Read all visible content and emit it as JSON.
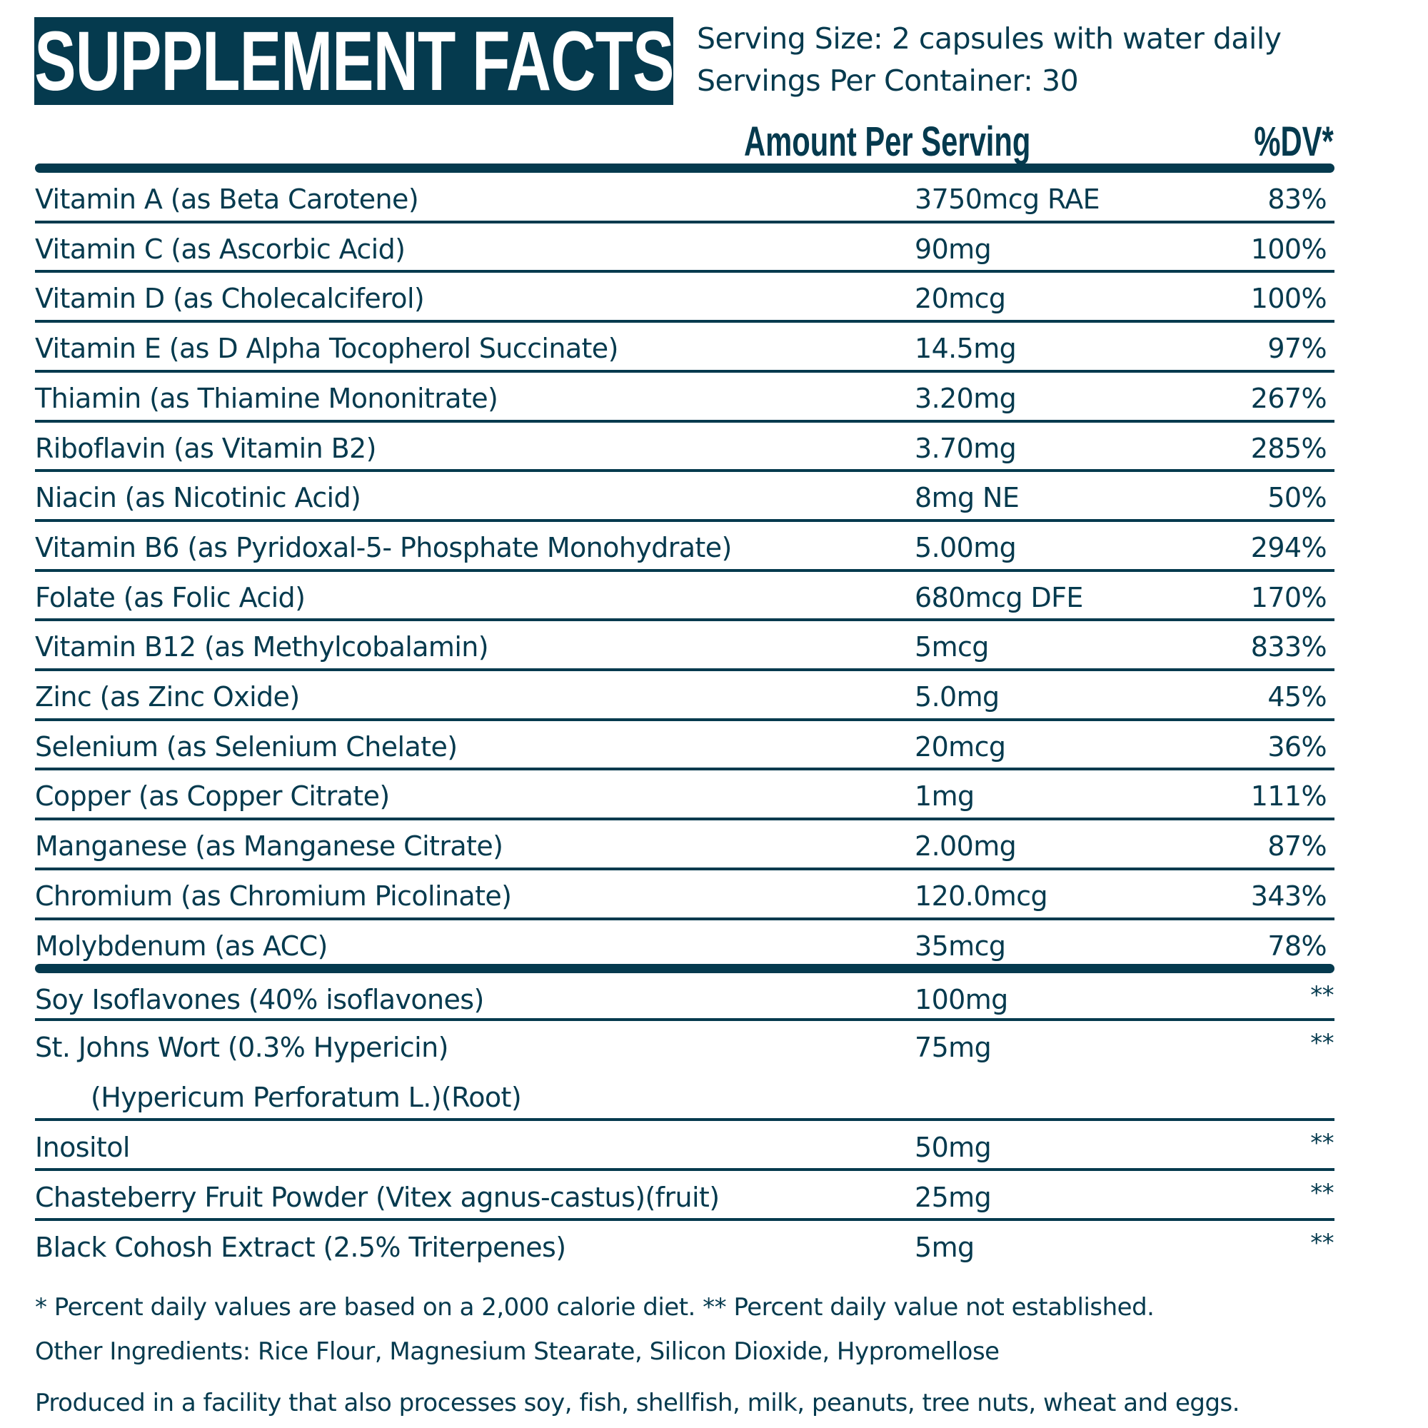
{
  "header": {
    "title": "SUPPLEMENT FACTS",
    "serving_size": "Serving Size: 2 capsules with water daily",
    "servings_per_container": "Servings Per Container: 30"
  },
  "columns": {
    "amount": "Amount Per Serving",
    "dv": "%DV*"
  },
  "nutrients": [
    {
      "name": "Vitamin A (as Beta Carotene)",
      "amount": "3750mcg RAE",
      "dv": "83%"
    },
    {
      "name": "Vitamin C (as Ascorbic Acid)",
      "amount": "90mg",
      "dv": "100%"
    },
    {
      "name": "Vitamin D (as Cholecalciferol)",
      "amount": "20mcg",
      "dv": "100%"
    },
    {
      "name": "Vitamin E (as D Alpha Tocopherol Succinate)",
      "amount": "14.5mg",
      "dv": "97%"
    },
    {
      "name": "Thiamin (as Thiamine Mononitrate)",
      "amount": "3.20mg",
      "dv": "267%"
    },
    {
      "name": "Riboflavin (as Vitamin B2)",
      "amount": "3.70mg",
      "dv": "285%"
    },
    {
      "name": "Niacin (as Nicotinic Acid)",
      "amount": "8mg NE",
      "dv": "50%"
    },
    {
      "name": "Vitamin B6 (as Pyridoxal-5- Phosphate Monohydrate)",
      "amount": "5.00mg",
      "dv": "294%"
    },
    {
      "name": "Folate (as Folic Acid)",
      "amount": "680mcg DFE",
      "dv": "170%"
    },
    {
      "name": "Vitamin B12 (as Methylcobalamin)",
      "amount": "5mcg",
      "dv": "833%"
    },
    {
      "name": "Zinc (as Zinc Oxide)",
      "amount": "5.0mg",
      "dv": "45%"
    },
    {
      "name": "Selenium (as Selenium Chelate)",
      "amount": "20mcg",
      "dv": "36%"
    },
    {
      "name": "Copper (as Copper Citrate)",
      "amount": "1mg",
      "dv": "111%"
    },
    {
      "name": "Manganese (as Manganese Citrate)",
      "amount": "2.00mg",
      "dv": "87%"
    },
    {
      "name": "Chromium (as Chromium Picolinate)",
      "amount": "120.0mcg",
      "dv": "343%"
    },
    {
      "name": "Molybdenum (as ACC)",
      "amount": "35mcg",
      "dv": "78%"
    }
  ],
  "other_ingredients_table": [
    {
      "name": "Soy Isoflavones (40% isoflavones)",
      "amount": "100mg",
      "dv": "**"
    },
    {
      "name": "St. Johns Wort (0.3% Hypericin)",
      "name_line2": "(Hypericum Perforatum L.)(Root)",
      "amount": "75mg",
      "dv": "**"
    },
    {
      "name": "Inositol",
      "amount": "50mg",
      "dv": "**"
    },
    {
      "name": "Chasteberry Fruit Powder (Vitex agnus-castus)(fruit)",
      "amount": "25mg",
      "dv": "**"
    },
    {
      "name": "Black Cohosh Extract (2.5% Triterpenes)",
      "amount": "5mg",
      "dv": "**"
    }
  ],
  "footer": {
    "dv_note": "* Percent daily values are based on a 2,000 calorie diet. ** Percent daily value not established.",
    "other_ingredients": "Other Ingredients: Rice Flour, Magnesium Stearate, Silicon Dioxide, Hypromellose",
    "allergen": "Produced in a facility that also processes soy, fish, shellfish, milk, peanuts, tree nuts, wheat and eggs."
  },
  "colors": {
    "primary": "#053a4e",
    "background": "#ffffff",
    "title_text": "#ffffff"
  }
}
